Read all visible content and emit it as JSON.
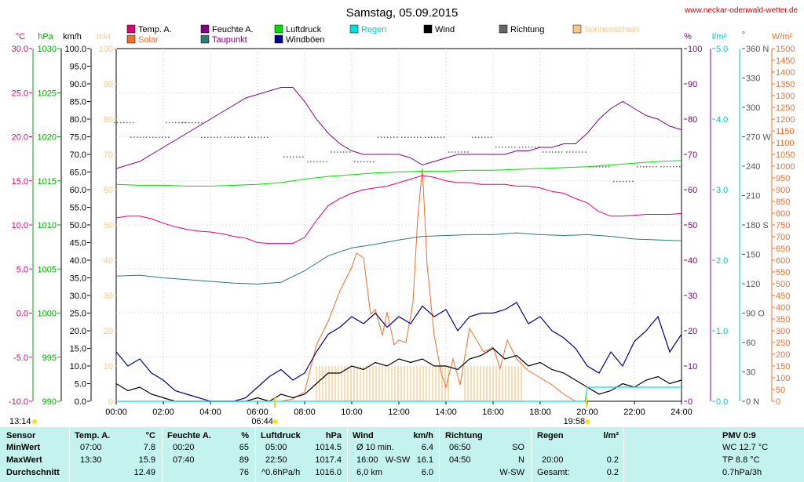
{
  "title": "Samstag, 05.09.2015",
  "website": "www.neckar-odenwald-wetter.de",
  "legend": [
    {
      "label": "Temp. A.",
      "color": "#e0007a"
    },
    {
      "label": "Feuchte A.",
      "color": "#800080"
    },
    {
      "label": "Luftdruck",
      "color": "#00dd00"
    },
    {
      "label": "Regen",
      "color": "#00e0e0"
    },
    {
      "label": "Wind",
      "color": "#000000"
    },
    {
      "label": "Richtung",
      "color": "#666666"
    },
    {
      "label": "Sonnenschein",
      "color": "#f8c88a"
    },
    {
      "label": "Solar",
      "color": "#f07028"
    },
    {
      "label": "Taupunkt",
      "color": "#2a7a78"
    },
    {
      "label": "Windböen",
      "color": "#000090"
    }
  ],
  "axes": {
    "temp": {
      "unit": "°C",
      "color": "#e0007a",
      "ticks": [
        "30.0",
        "25.0",
        "20.0",
        "15.0",
        "10.0",
        "5.0",
        "0.0",
        "-5.0",
        "-10.0"
      ]
    },
    "pressure": {
      "unit": "hPa",
      "color": "#00aa00",
      "ticks": [
        "1030",
        "1025",
        "1020",
        "1015",
        "1010",
        "1005",
        "1000",
        "995",
        "990"
      ]
    },
    "wind": {
      "unit": "km/h",
      "color": "#000000",
      "ticks": [
        "100.0",
        "95.0",
        "90.0",
        "85.0",
        "80.0",
        "75.0",
        "70.0",
        "65.0",
        "60.0",
        "55.0",
        "50.0",
        "45.0",
        "40.0",
        "35.0",
        "30.0",
        "25.0",
        "20.0",
        "15.0",
        "10.0",
        "5.0",
        "0.0"
      ]
    },
    "minutes": {
      "unit": "min",
      "color": "#f8c88a",
      "ticks": [
        "100",
        "90",
        "80",
        "70",
        "60",
        "50",
        "40",
        "30",
        "20",
        "10",
        "0"
      ]
    },
    "humidity": {
      "unit": "%",
      "color": "#800080",
      "ticks": [
        "100",
        "90",
        "80",
        "70",
        "60",
        "50",
        "40",
        "30",
        "20",
        "10",
        "0"
      ]
    },
    "rain": {
      "unit": "l/m²",
      "color": "#00c8c8",
      "ticks": [
        "5.0",
        "4.0",
        "3.0",
        "2.0",
        "1.0",
        "0.0"
      ]
    },
    "direction": {
      "unit": "°",
      "color": "#555555",
      "ticks": [
        "360 N",
        "330",
        "300",
        "270 W",
        "240",
        "210",
        "180 S",
        "150",
        "120",
        "90 O",
        "60",
        "30",
        "0 N"
      ]
    },
    "solar": {
      "unit": "W/m²",
      "color": "#f07028",
      "ticks": [
        "1500",
        "1450",
        "1400",
        "1350",
        "1300",
        "1250",
        "1200",
        "1150",
        "1100",
        "1050",
        "1000",
        "950",
        "900",
        "850",
        "800",
        "750",
        "700",
        "650",
        "600",
        "550",
        "500",
        "450",
        "400",
        "350",
        "300",
        "250",
        "200",
        "150",
        "100",
        "50",
        "0"
      ]
    }
  },
  "x_ticks": [
    "00:00",
    "02:00",
    "04:00",
    "06:00",
    "08:00",
    "10:00",
    "12:00",
    "14:00",
    "16:00",
    "18:00",
    "20:00",
    "22:00",
    "24:00"
  ],
  "sun_events": [
    {
      "label": "13:14",
      "hour": 0
    },
    {
      "label": "06:44",
      "hour": 6.73
    },
    {
      "label": "19:58",
      "hour": 19.97
    }
  ],
  "chart_data": {
    "type": "line",
    "x_unit": "hour",
    "xlim": [
      0,
      24
    ],
    "grid": true,
    "series": [
      {
        "name": "Temp. A.",
        "unit": "°C",
        "color": "#e0007a",
        "x": [
          0,
          0.5,
          1,
          1.5,
          2,
          2.5,
          3,
          3.5,
          4,
          4.5,
          5,
          5.5,
          6,
          6.5,
          7,
          7.5,
          8,
          8.5,
          9,
          9.5,
          10,
          10.5,
          11,
          11.5,
          12,
          12.5,
          13,
          13.5,
          14,
          14.5,
          15,
          15.5,
          16,
          16.5,
          17,
          17.5,
          18,
          18.5,
          19,
          19.5,
          20,
          20.5,
          21,
          21.5,
          22,
          22.5,
          23,
          23.5,
          24
        ],
        "values": [
          10.8,
          11.0,
          11.0,
          10.7,
          10.2,
          9.8,
          9.5,
          9.3,
          9.2,
          9.0,
          8.7,
          8.5,
          8.0,
          7.9,
          7.9,
          7.9,
          8.6,
          10.5,
          12.2,
          13.0,
          13.6,
          14.0,
          14.2,
          14.4,
          14.8,
          15.2,
          15.6,
          15.4,
          15.0,
          14.8,
          14.8,
          14.6,
          14.6,
          14.6,
          14.4,
          14.4,
          14.2,
          13.8,
          13.6,
          13.0,
          12.5,
          11.5,
          11.0,
          11.0,
          11.1,
          11.2,
          11.2,
          11.2,
          11.3
        ]
      },
      {
        "name": "Feuchte A.",
        "unit": "%",
        "color": "#800080",
        "x": [
          0,
          0.5,
          1,
          1.5,
          2,
          2.5,
          3,
          3.5,
          4,
          4.5,
          5,
          5.5,
          6,
          6.5,
          7,
          7.5,
          8,
          8.5,
          9,
          9.5,
          10,
          10.5,
          11,
          11.5,
          12,
          12.5,
          13,
          13.5,
          14,
          14.5,
          15,
          15.5,
          16,
          16.5,
          17,
          17.5,
          18,
          18.5,
          19,
          19.5,
          20,
          20.5,
          21,
          21.5,
          22,
          22.5,
          23,
          23.5,
          24
        ],
        "values": [
          66,
          67,
          68,
          70,
          72,
          74,
          76,
          78,
          80,
          82,
          84,
          86,
          87,
          88,
          89,
          89,
          85,
          80,
          76,
          73,
          71,
          70,
          70,
          70,
          70,
          69,
          67,
          68,
          69,
          70,
          70,
          70,
          70,
          70,
          71,
          71,
          72,
          72,
          73,
          73,
          76,
          80,
          83,
          85,
          83,
          81,
          80,
          78,
          77
        ]
      },
      {
        "name": "Luftdruck",
        "unit": "hPa",
        "color": "#00dd00",
        "x": [
          0,
          1,
          2,
          3,
          4,
          5,
          6,
          7,
          8,
          9,
          10,
          11,
          12,
          13,
          14,
          15,
          16,
          17,
          18,
          19,
          20,
          21,
          22,
          23,
          24
        ],
        "values": [
          1014.6,
          1014.5,
          1014.5,
          1014.4,
          1014.4,
          1014.5,
          1014.6,
          1014.8,
          1015.2,
          1015.5,
          1015.7,
          1015.9,
          1016.0,
          1016.1,
          1016.1,
          1016.2,
          1016.2,
          1016.3,
          1016.4,
          1016.5,
          1016.6,
          1016.8,
          1017.0,
          1017.2,
          1017.3
        ]
      },
      {
        "name": "Taupunkt",
        "unit": "°C",
        "color": "#2a7a78",
        "x": [
          0,
          1,
          2,
          3,
          4,
          5,
          6,
          7,
          8,
          9,
          10,
          11,
          12,
          13,
          14,
          15,
          16,
          17,
          18,
          19,
          20,
          21,
          22,
          23,
          24
        ],
        "values": [
          4.2,
          4.3,
          4.0,
          3.8,
          3.6,
          3.4,
          3.3,
          3.5,
          4.8,
          6.5,
          7.4,
          7.8,
          8.3,
          8.7,
          8.8,
          8.9,
          8.9,
          9.1,
          8.9,
          8.8,
          8.9,
          8.7,
          8.4,
          8.3,
          8.2
        ]
      },
      {
        "name": "Wind",
        "unit": "km/h",
        "color": "#000000",
        "x": [
          0,
          0.5,
          1,
          1.5,
          2,
          2.5,
          3,
          3.5,
          4,
          4.5,
          5,
          5.5,
          6,
          6.5,
          7,
          7.5,
          8,
          8.5,
          9,
          9.5,
          10,
          10.5,
          11,
          11.5,
          12,
          12.5,
          13,
          13.5,
          14,
          14.5,
          15,
          15.5,
          16,
          16.5,
          17,
          17.5,
          18,
          18.5,
          19,
          19.5,
          20,
          20.5,
          21,
          21.5,
          22,
          22.5,
          23,
          23.5,
          24
        ],
        "values": [
          5,
          3,
          4,
          2,
          1,
          0,
          0,
          0,
          0,
          0,
          0,
          0,
          1,
          0,
          2,
          1,
          2,
          5,
          8,
          8,
          10,
          9,
          11,
          10,
          12,
          11,
          12,
          10,
          10,
          9,
          12,
          13,
          15,
          12,
          13,
          10,
          11,
          9,
          8,
          6,
          4,
          2,
          3,
          5,
          4,
          6,
          7,
          5,
          6
        ]
      },
      {
        "name": "Windböen",
        "unit": "km/h",
        "color": "#000090",
        "x": [
          0,
          0.5,
          1,
          1.5,
          2,
          2.5,
          3,
          3.5,
          4,
          4.5,
          5,
          5.5,
          6,
          6.5,
          7,
          7.5,
          8,
          8.5,
          9,
          9.5,
          10,
          10.5,
          11,
          11.5,
          12,
          12.5,
          13,
          13.5,
          14,
          14.5,
          15,
          15.5,
          16,
          16.5,
          17,
          17.5,
          18,
          18.5,
          19,
          19.5,
          20,
          20.5,
          21,
          21.5,
          22,
          22.5,
          23,
          23.5,
          24
        ],
        "values": [
          14,
          10,
          12,
          8,
          6,
          3,
          2,
          1,
          0,
          0,
          0,
          1,
          4,
          7,
          9,
          6,
          8,
          14,
          19,
          21,
          24,
          22,
          25,
          21,
          24,
          22,
          27,
          24,
          26,
          20,
          24,
          25,
          25,
          26,
          28,
          22,
          24,
          20,
          18,
          15,
          10,
          8,
          14,
          10,
          17,
          20,
          24,
          14,
          19
        ]
      },
      {
        "name": "Solar",
        "unit": "W/m²",
        "color": "#f07028",
        "x": [
          7,
          7.5,
          8,
          8.5,
          9,
          9.5,
          10,
          10.2,
          10.5,
          10.8,
          11,
          11.3,
          11.5,
          11.8,
          12,
          12.3,
          12.6,
          12.8,
          13,
          13.2,
          13.5,
          13.8,
          14,
          14.3,
          14.6,
          15,
          15.3,
          15.6,
          16,
          16.3,
          16.6,
          17,
          17.5,
          18,
          18.5,
          19,
          19.5
        ],
        "values": [
          0,
          10,
          40,
          240,
          340,
          470,
          570,
          630,
          610,
          370,
          390,
          280,
          380,
          240,
          260,
          250,
          420,
          780,
          990,
          580,
          280,
          120,
          60,
          180,
          70,
          310,
          260,
          210,
          230,
          140,
          260,
          180,
          130,
          100,
          70,
          30,
          0
        ]
      },
      {
        "name": "Regen",
        "unit": "l/m²",
        "color": "#00e0e0",
        "x": [
          0,
          19.9,
          20,
          24
        ],
        "values": [
          0,
          0,
          0.2,
          0.2
        ]
      },
      {
        "name": "Richtung",
        "unit": "°",
        "color": "#666666",
        "x": [
          0.3,
          1,
          1.8,
          2.5,
          3.2,
          4,
          5,
          6,
          7.5,
          8.5,
          9.5,
          10.5,
          11.5,
          12.5,
          13.5,
          14.5,
          15.5,
          16.5,
          17.5,
          18.5,
          19.5,
          20.5,
          21.5,
          22.5,
          23.5
        ],
        "values": [
          285,
          270,
          270,
          285,
          285,
          270,
          270,
          270,
          250,
          245,
          255,
          245,
          270,
          270,
          270,
          255,
          270,
          260,
          260,
          255,
          255,
          240,
          225,
          240,
          240
        ]
      },
      {
        "name": "Sonnenschein",
        "unit": "min",
        "color": "#f8c88a",
        "x": [
          8.5,
          14.2,
          14.8,
          17.3
        ],
        "values": [
          10,
          0,
          10,
          0
        ]
      }
    ]
  },
  "table": {
    "columns": [
      {
        "name": "Sensor",
        "unit": ""
      },
      {
        "name": "Temp. A.",
        "unit": "°C"
      },
      {
        "name": "Feuchte A.",
        "unit": "%"
      },
      {
        "name": "Luftdruck",
        "unit": "hPa"
      },
      {
        "name": "Wind",
        "unit": "km/h"
      },
      {
        "name": "Richtung",
        "unit": ""
      },
      {
        "name": "Regen",
        "unit": "l/m²"
      },
      {
        "name": "PMV 0:9",
        "unit": ""
      }
    ],
    "row_labels": [
      "MinWert",
      "MaxWert",
      "Durchschnitt"
    ],
    "temp": [
      [
        "07:00",
        "7.8"
      ],
      [
        "13:30",
        "15.9"
      ],
      [
        "",
        "12.49"
      ]
    ],
    "humidity": [
      [
        "00:20",
        "65"
      ],
      [
        "07:40",
        "89"
      ],
      [
        "",
        "76"
      ]
    ],
    "pressure": [
      [
        "05:00",
        "1014.5"
      ],
      [
        "22:50",
        "1017.4"
      ],
      [
        "^0.6hPa/h",
        "1016.0"
      ]
    ],
    "wind": [
      [
        "Ø 10 min.",
        "6.4"
      ],
      [
        "16:00   W-SW",
        "16.1"
      ],
      [
        "6,0 km",
        "6.0"
      ]
    ],
    "direction": [
      [
        "06:50",
        "SO"
      ],
      [
        "04:50",
        "N"
      ],
      [
        "",
        "W-SW"
      ]
    ],
    "rain": [
      [
        "",
        ""
      ],
      [
        "20:00",
        "0.2"
      ],
      [
        "Gesamt:",
        "0.2"
      ]
    ],
    "pmv": [
      "WC 12.7 °C",
      "TP 8.8 °C",
      "0.7hPa/3h"
    ]
  }
}
